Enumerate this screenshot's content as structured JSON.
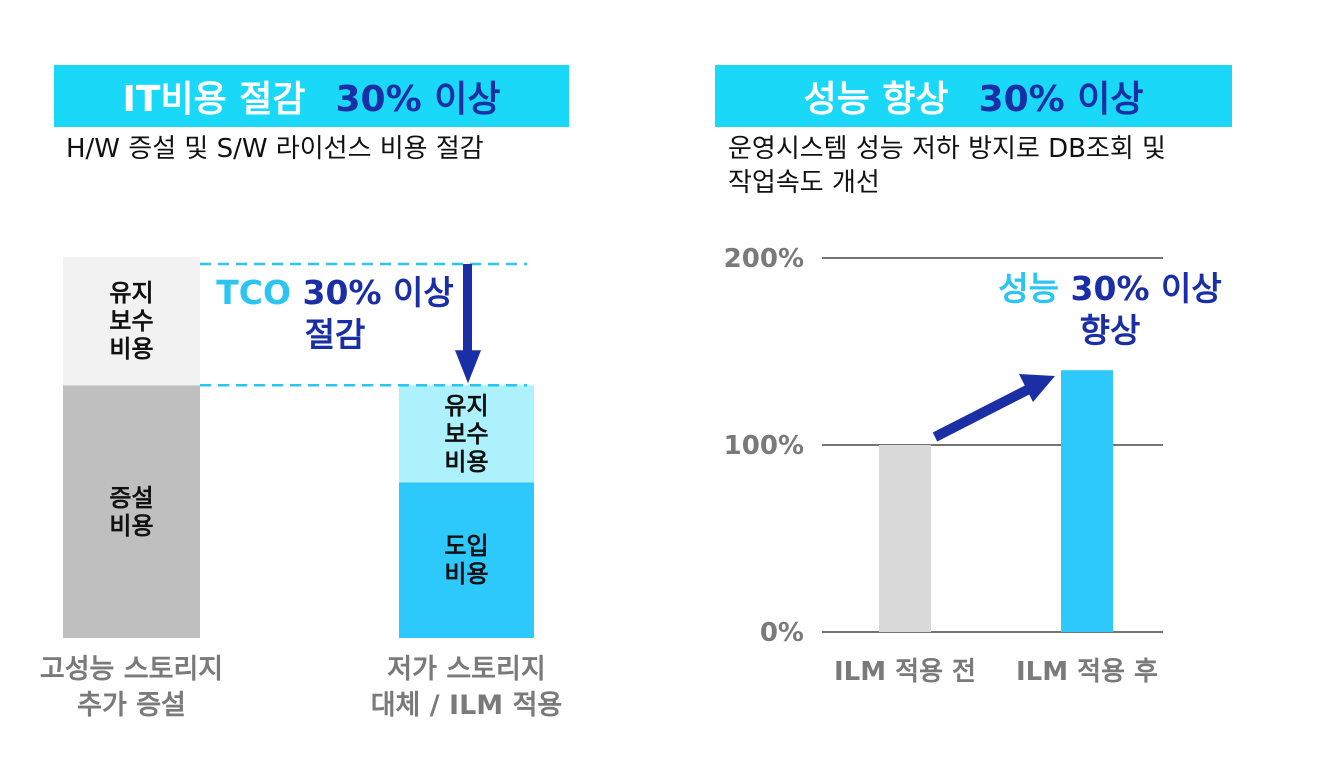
{
  "left_panel": {
    "banner_title": "IT비용 절감",
    "banner_highlight": "30% 이상",
    "subtitle": "H/W 증설 및 S/W 라이선스 비용 절감",
    "tco_label": "TCO",
    "tco_text": "30% 이상",
    "tco_text2": "절감"
  },
  "right_panel": {
    "banner_title": "성능 향상",
    "banner_highlight": "30% 이상",
    "subtitle_line1": "운영시스템 성능 저하 방지로 DB조회 및",
    "subtitle_line2": "작업속도 개선",
    "annotation_label": "성능",
    "annotation_text": "30% 이상",
    "annotation_text2": "향상"
  },
  "colors": {
    "banner_bg": "#1ad8f7",
    "highlight": "#1a2ea6",
    "cyan_text": "#2cc4f0",
    "maintenance_gray": "#f2f2f2",
    "expansion_gray": "#bfbfbf",
    "maintenance_lightblue": "#adf1fd",
    "intro_blue": "#2ec9fc",
    "before_bar": "#d9d9d9",
    "after_bar": "#2ec9fc"
  },
  "chart_data": [
    {
      "type": "bar",
      "stacked": true,
      "categories": [
        "고성능 스토리지\n추가 증설",
        "저가 스토리지\n대체 / ILM 적용"
      ],
      "category_lines": [
        [
          "고성능 스토리지",
          "추가 증설"
        ],
        [
          "저가 스토리지",
          "대체 / ILM 적용"
        ]
      ],
      "segments": [
        {
          "category": 0,
          "label_lines": [
            "증설",
            "비용"
          ],
          "value": 65,
          "base": 0
        },
        {
          "category": 0,
          "label_lines": [
            "유지",
            "보수",
            "비용"
          ],
          "value": 33,
          "base": 65
        },
        {
          "category": 1,
          "label_lines": [
            "도입",
            "비용"
          ],
          "value": 40,
          "base": 0
        },
        {
          "category": 1,
          "label_lines": [
            "유지",
            "보수",
            "비용"
          ],
          "value": 25,
          "base": 40
        }
      ],
      "ylim": [
        0,
        98
      ]
    },
    {
      "type": "bar",
      "categories": [
        "ILM 적용 전",
        "ILM 적용 후"
      ],
      "values": [
        100,
        140
      ],
      "yticks": [
        "0%",
        "100%",
        "200%"
      ],
      "ytick_values": [
        0,
        100,
        200
      ],
      "ylim": [
        0,
        200
      ],
      "grid": true
    }
  ]
}
